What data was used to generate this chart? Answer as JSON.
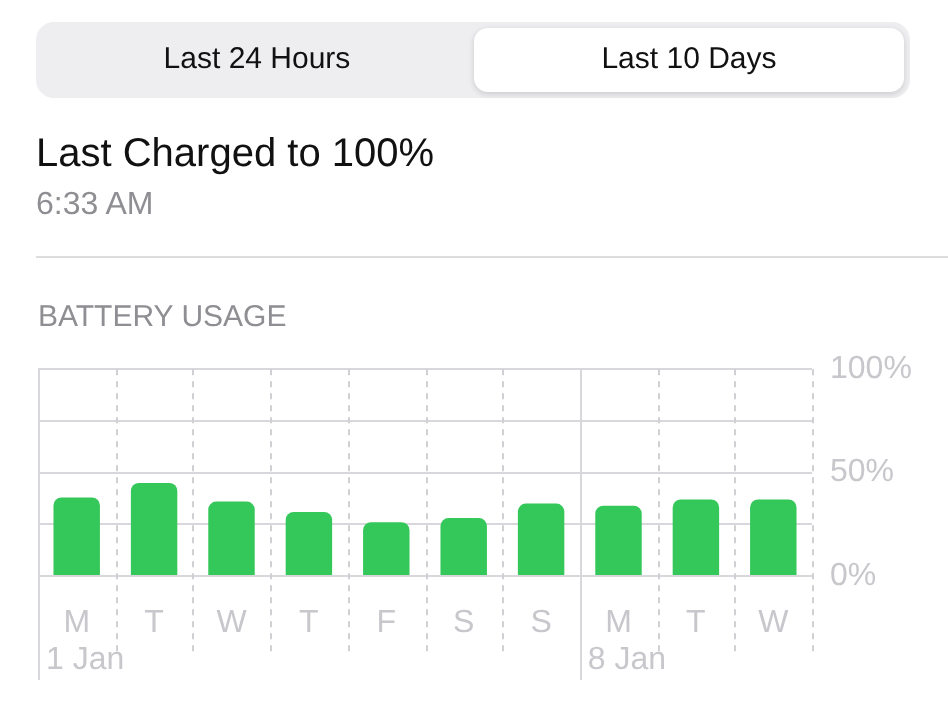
{
  "chart_data": {
    "type": "bar",
    "title": "BATTERY USAGE",
    "categories": [
      "M",
      "T",
      "W",
      "T",
      "F",
      "S",
      "S",
      "M",
      "T",
      "W"
    ],
    "values": [
      38,
      45,
      36,
      31,
      26,
      28,
      35,
      34,
      37,
      37
    ],
    "color": "#34c759",
    "ylim": [
      0,
      100
    ],
    "yticks": [
      {
        "value": 0,
        "label": "0%"
      },
      {
        "value": 25,
        "label": null
      },
      {
        "value": 50,
        "label": "50%"
      },
      {
        "value": 75,
        "label": null
      },
      {
        "value": 100,
        "label": "100%"
      }
    ],
    "grid": true,
    "annotations": [
      "Last 24 Hours",
      "Last 10 Days",
      "Last Charged to 100%",
      "6:33 AM",
      "1 Jan",
      "8 Jan"
    ]
  }
}
